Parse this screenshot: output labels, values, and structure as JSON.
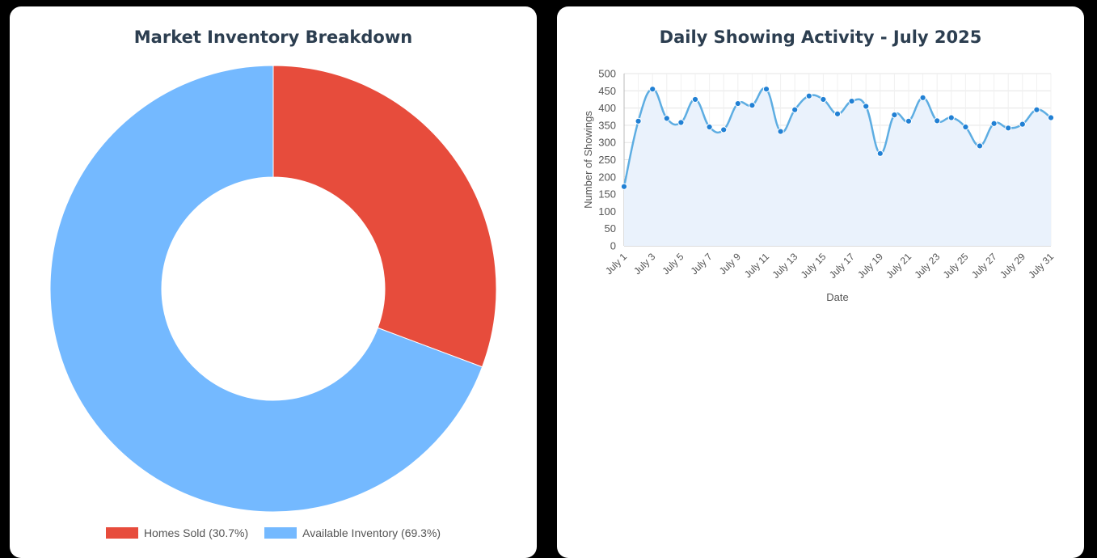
{
  "chart_data": [
    {
      "type": "pie",
      "title": "Market Inventory Breakdown",
      "labels": [
        "Homes Sold",
        "Available Inventory"
      ],
      "values": [
        30.7,
        69.3
      ],
      "legend_labels": [
        "Homes Sold (30.7%)",
        "Available Inventory (69.3%)"
      ],
      "colors": [
        "#e74c3c",
        "#74b9ff"
      ],
      "legend": "bottom"
    },
    {
      "type": "line",
      "title": "Daily Showing Activity - July 2025",
      "xlabel": "Date",
      "ylabel": "Number of Showings",
      "categories": [
        "July 1",
        "July 2",
        "July 3",
        "July 4",
        "July 5",
        "July 6",
        "July 7",
        "July 8",
        "July 9",
        "July 10",
        "July 11",
        "July 12",
        "July 13",
        "July 14",
        "July 15",
        "July 16",
        "July 17",
        "July 18",
        "July 19",
        "July 20",
        "July 21",
        "July 22",
        "July 23",
        "July 24",
        "July 25",
        "July 26",
        "July 27",
        "July 28",
        "July 29",
        "July 30",
        "July 31"
      ],
      "tick_labels": [
        "July 1",
        "July 3",
        "July 5",
        "July 7",
        "July 9",
        "July 11",
        "July 13",
        "July 15",
        "July 17",
        "July 19",
        "July 21",
        "July 23",
        "July 25",
        "July 27",
        "July 29",
        "July 31"
      ],
      "values": [
        172,
        362,
        455,
        370,
        358,
        425,
        345,
        337,
        413,
        408,
        455,
        332,
        395,
        435,
        425,
        383,
        420,
        405,
        268,
        380,
        362,
        430,
        363,
        372,
        345,
        290,
        355,
        342,
        353,
        395,
        372
      ],
      "ylim": [
        0,
        500
      ],
      "yticks": [
        0,
        50,
        100,
        150,
        200,
        250,
        300,
        350,
        400,
        450,
        500
      ],
      "line_color": "#5dade2",
      "point_color": "#2180d4",
      "fill_color": "#eaf2fc",
      "grid": true
    }
  ]
}
